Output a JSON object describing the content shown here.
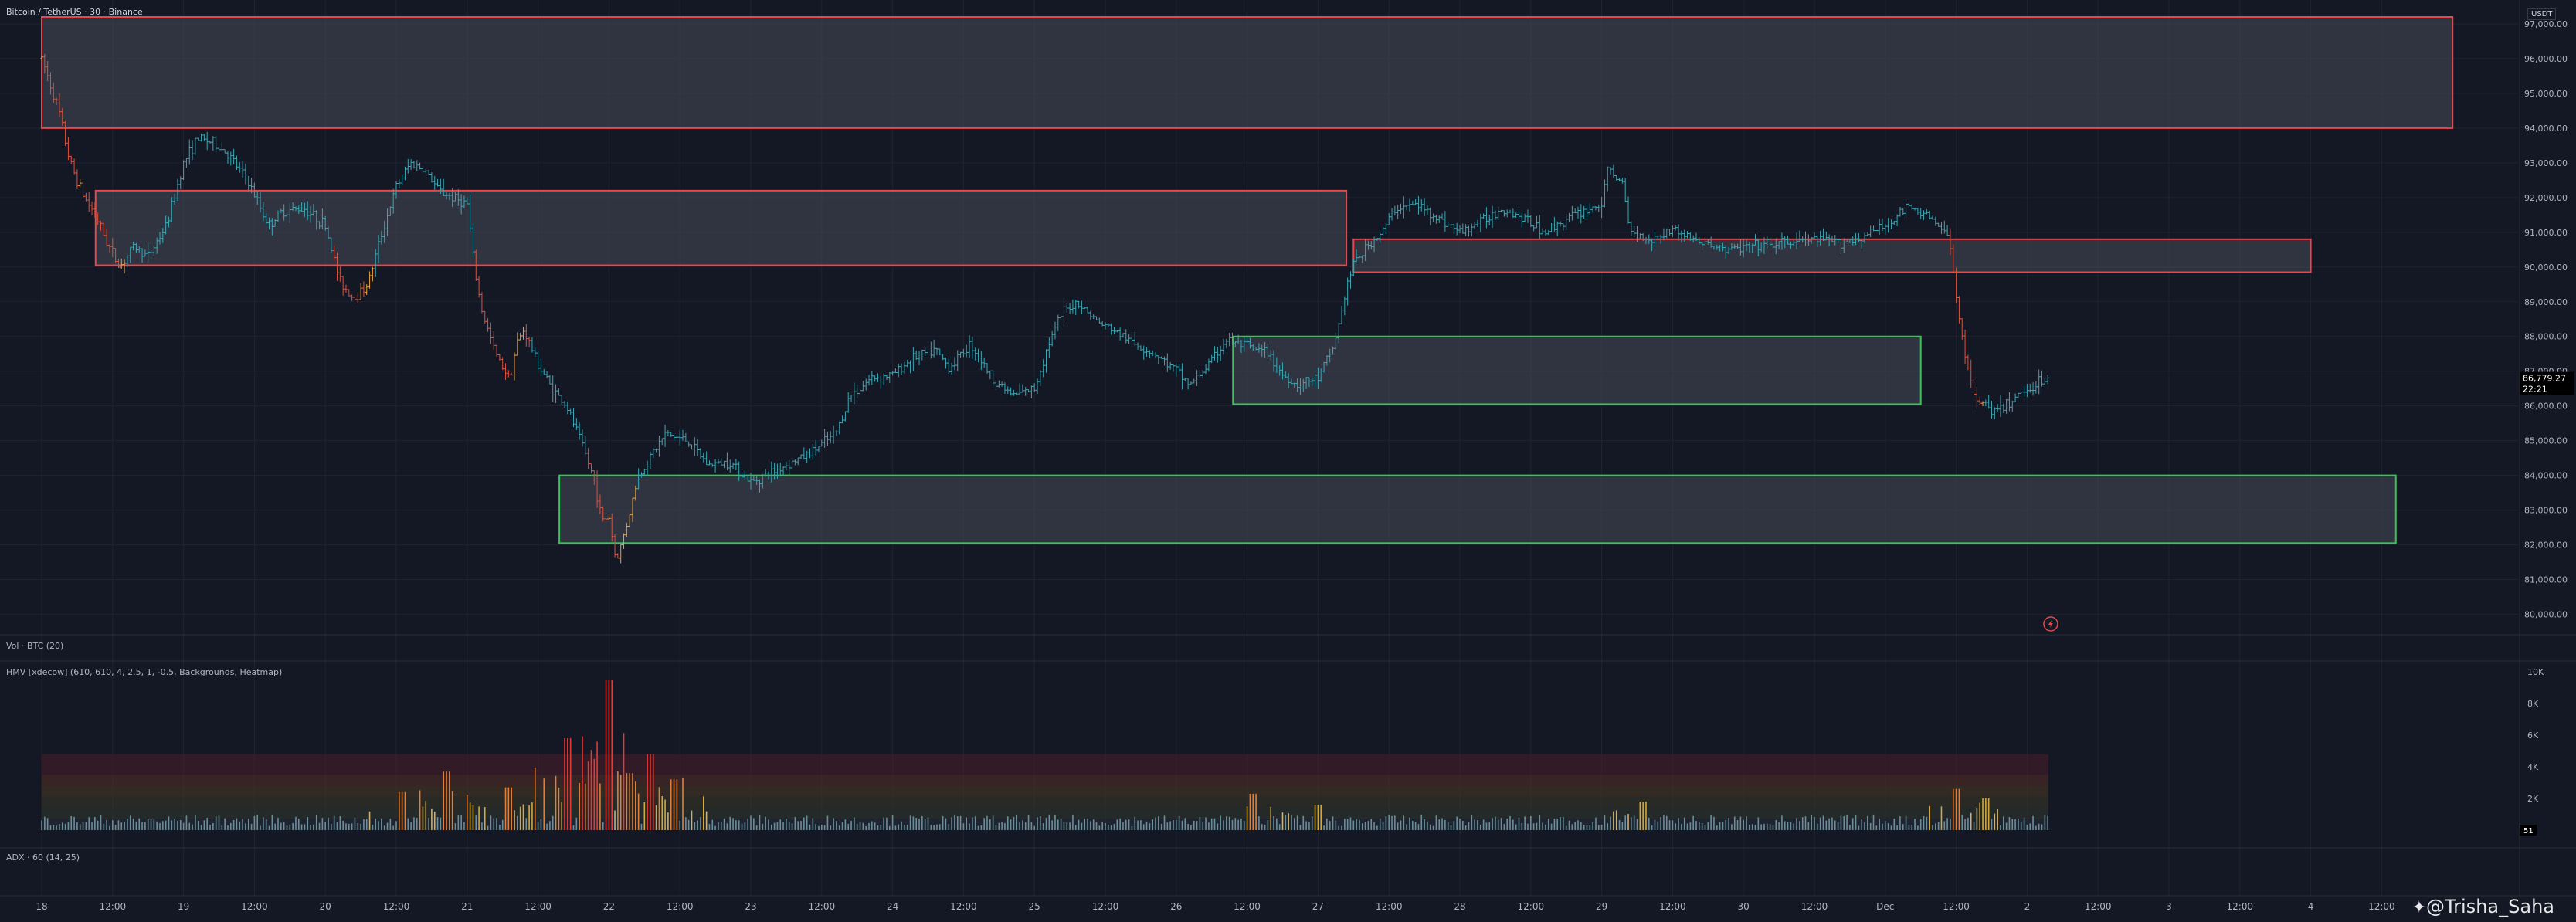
{
  "header": {
    "symbol_title": "Bitcoin / TetherUS · 30 · Binance",
    "currency_label": "USDT"
  },
  "price_axis": {
    "ticks": [
      "97,000.00",
      "96,000.00",
      "95,000.00",
      "94,000.00",
      "93,000.00",
      "92,000.00",
      "91,000.00",
      "90,000.00",
      "89,000.00",
      "88,000.00",
      "87,000.00",
      "86,000.00",
      "85,000.00",
      "84,000.00",
      "83,000.00",
      "82,000.00",
      "81,000.00",
      "80,000.00"
    ],
    "tick_values": [
      97000,
      96000,
      95000,
      94000,
      93000,
      92000,
      91000,
      90000,
      89000,
      88000,
      87000,
      86000,
      85000,
      84000,
      83000,
      82000,
      81000,
      80000
    ],
    "last_price": "86,779.27",
    "last_price_value": 86779.27,
    "countdown": "22:21",
    "last_price_color": "#2aa3b3"
  },
  "time_axis": {
    "labels": [
      "18",
      "12:00",
      "19",
      "12:00",
      "20",
      "12:00",
      "21",
      "12:00",
      "22",
      "12:00",
      "23",
      "12:00",
      "24",
      "12:00",
      "25",
      "12:00",
      "26",
      "12:00",
      "27",
      "12:00",
      "28",
      "12:00",
      "29",
      "12:00",
      "30",
      "12:00",
      "Dec",
      "12:00",
      "2",
      "12:00",
      "3",
      "12:00",
      "4",
      "12:00"
    ]
  },
  "zones": [
    {
      "type": "supply",
      "from_day": 0.0,
      "to_day": 17.0,
      "top": 97200,
      "bottom": 94000
    },
    {
      "type": "supply",
      "from_day": 0.38,
      "to_day": 9.2,
      "top": 92200,
      "bottom": 90050
    },
    {
      "type": "supply",
      "from_day": 9.25,
      "to_day": 16.0,
      "top": 90800,
      "bottom": 89850
    },
    {
      "type": "demand",
      "from_day": 8.4,
      "to_day": 13.25,
      "top": 88000,
      "bottom": 86050
    },
    {
      "type": "demand",
      "from_day": 3.65,
      "to_day": 16.6,
      "top": 84000,
      "bottom": 82050
    }
  ],
  "indicators": {
    "volume_label": "Vol · BTC (20)",
    "hmv_label": "HMV [xdecow] (610, 610, 4, 2.5, 1, -0.5, Backgrounds, Heatmap)",
    "hmv_ticks": [
      "10K",
      "8K",
      "6K",
      "4K",
      "2K"
    ],
    "hmv_tick_values": [
      10000,
      8000,
      6000,
      4000,
      2000
    ],
    "hmv_last_value": "51",
    "adx_label": "ADX · 60 (14, 25)"
  },
  "watermark": {
    "text": "@Trisha_Saha"
  },
  "colors": {
    "background": "#141824",
    "candle": "#3aa8b4",
    "supply_zone_border": "#e5484d",
    "demand_zone_border": "#3ec15b",
    "zone_fill": "#474c58",
    "grid": "#1f2330"
  },
  "chart_data": {
    "type": "ohlc",
    "x_unit": "days since Nov 18 00:00",
    "price_path": [
      [
        0,
        96000
      ],
      [
        0.05,
        95400
      ],
      [
        0.12,
        94500
      ],
      [
        0.2,
        93000
      ],
      [
        0.3,
        92000
      ],
      [
        0.38,
        91500
      ],
      [
        0.45,
        90800
      ],
      [
        0.55,
        90000
      ],
      [
        0.65,
        90600
      ],
      [
        0.75,
        90300
      ],
      [
        0.88,
        91200
      ],
      [
        1.0,
        93000
      ],
      [
        1.1,
        93700
      ],
      [
        1.2,
        93600
      ],
      [
        1.3,
        93300
      ],
      [
        1.45,
        92500
      ],
      [
        1.6,
        91200
      ],
      [
        1.7,
        91600
      ],
      [
        1.85,
        91700
      ],
      [
        2.0,
        91200
      ],
      [
        2.1,
        89600
      ],
      [
        2.2,
        89100
      ],
      [
        2.3,
        89500
      ],
      [
        2.4,
        91000
      ],
      [
        2.5,
        92300
      ],
      [
        2.6,
        93000
      ],
      [
        2.7,
        92800
      ],
      [
        2.8,
        92200
      ],
      [
        2.9,
        92000
      ],
      [
        3.0,
        91800
      ],
      [
        3.05,
        90000
      ],
      [
        3.1,
        88800
      ],
      [
        3.2,
        87500
      ],
      [
        3.3,
        86800
      ],
      [
        3.35,
        87800
      ],
      [
        3.4,
        88200
      ],
      [
        3.5,
        87200
      ],
      [
        3.6,
        86500
      ],
      [
        3.7,
        86000
      ],
      [
        3.8,
        85000
      ],
      [
        3.9,
        83800
      ],
      [
        3.95,
        82700
      ],
      [
        4.0,
        82800
      ],
      [
        4.05,
        81500
      ],
      [
        4.1,
        82200
      ],
      [
        4.15,
        83000
      ],
      [
        4.2,
        83900
      ],
      [
        4.3,
        84600
      ],
      [
        4.4,
        85200
      ],
      [
        4.55,
        85000
      ],
      [
        4.7,
        84300
      ],
      [
        4.85,
        84400
      ],
      [
        5.0,
        83800
      ],
      [
        5.2,
        84200
      ],
      [
        5.4,
        84600
      ],
      [
        5.6,
        85200
      ],
      [
        5.7,
        86300
      ],
      [
        5.85,
        86800
      ],
      [
        6.0,
        86900
      ],
      [
        6.15,
        87400
      ],
      [
        6.3,
        87600
      ],
      [
        6.4,
        87100
      ],
      [
        6.55,
        87800
      ],
      [
        6.7,
        86800
      ],
      [
        6.85,
        86300
      ],
      [
        7.0,
        86500
      ],
      [
        7.1,
        87800
      ],
      [
        7.2,
        88700
      ],
      [
        7.3,
        89000
      ],
      [
        7.45,
        88400
      ],
      [
        7.55,
        88200
      ],
      [
        7.7,
        87800
      ],
      [
        7.85,
        87500
      ],
      [
        8.0,
        87000
      ],
      [
        8.1,
        86600
      ],
      [
        8.25,
        87300
      ],
      [
        8.35,
        87900
      ],
      [
        8.5,
        87700
      ],
      [
        8.65,
        87500
      ],
      [
        8.75,
        86900
      ],
      [
        8.85,
        86600
      ],
      [
        9.0,
        86800
      ],
      [
        9.1,
        87600
      ],
      [
        9.15,
        88400
      ],
      [
        9.2,
        89400
      ],
      [
        9.25,
        90100
      ],
      [
        9.35,
        90600
      ],
      [
        9.45,
        91000
      ],
      [
        9.55,
        91700
      ],
      [
        9.7,
        91800
      ],
      [
        9.85,
        91400
      ],
      [
        10.0,
        91000
      ],
      [
        10.15,
        91300
      ],
      [
        10.3,
        91700
      ],
      [
        10.45,
        91400
      ],
      [
        10.6,
        91000
      ],
      [
        10.8,
        91500
      ],
      [
        11.0,
        91800
      ],
      [
        11.05,
        92900
      ],
      [
        11.15,
        92300
      ],
      [
        11.2,
        91000
      ],
      [
        11.35,
        90800
      ],
      [
        11.5,
        91100
      ],
      [
        11.7,
        90700
      ],
      [
        11.9,
        90500
      ],
      [
        12.1,
        90600
      ],
      [
        12.3,
        90700
      ],
      [
        12.5,
        90800
      ],
      [
        12.65,
        90700
      ],
      [
        12.8,
        90800
      ],
      [
        13.0,
        91200
      ],
      [
        13.15,
        91700
      ],
      [
        13.3,
        91500
      ],
      [
        13.45,
        90800
      ],
      [
        13.5,
        89200
      ],
      [
        13.55,
        87800
      ],
      [
        13.6,
        86600
      ],
      [
        13.7,
        86000
      ],
      [
        13.8,
        85800
      ],
      [
        13.9,
        86200
      ],
      [
        14.0,
        86500
      ],
      [
        14.1,
        86750
      ],
      [
        14.15,
        86780
      ]
    ],
    "volume_spikes": [
      [
        2.55,
        2400
      ],
      [
        2.85,
        3700
      ],
      [
        3.3,
        2700
      ],
      [
        3.7,
        5800
      ],
      [
        4.0,
        9500
      ],
      [
        4.15,
        3600
      ],
      [
        4.3,
        4800
      ],
      [
        4.45,
        3200
      ],
      [
        8.55,
        2300
      ],
      [
        9.0,
        1600
      ],
      [
        11.3,
        1800
      ],
      [
        13.5,
        2600
      ],
      [
        13.7,
        2000
      ]
    ],
    "ylim": [
      79500,
      97400
    ]
  }
}
